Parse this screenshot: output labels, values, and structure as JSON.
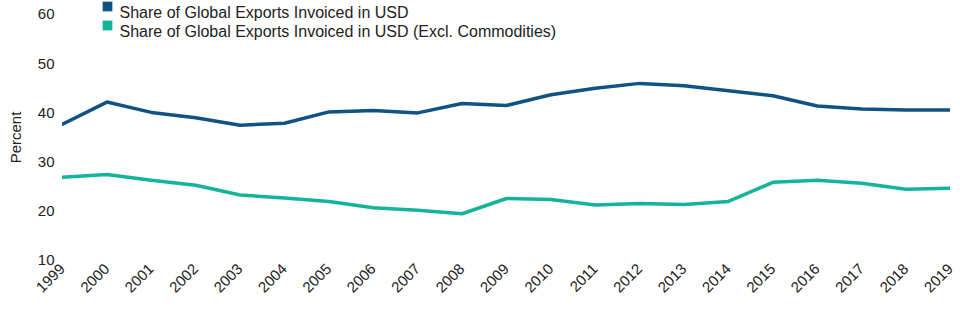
{
  "chart_data": {
    "type": "line",
    "y_label": "Percent",
    "x": [
      1999,
      2000,
      2001,
      2002,
      2003,
      2004,
      2005,
      2006,
      2007,
      2008,
      2009,
      2010,
      2011,
      2012,
      2013,
      2014,
      2015,
      2016,
      2017,
      2018,
      2019
    ],
    "series": [
      {
        "name": "Share of Global Exports Invoiced in USD",
        "color": "#0f5283",
        "values": [
          37.7,
          42.2,
          40.1,
          39.0,
          37.5,
          37.9,
          40.2,
          40.5,
          40.0,
          41.9,
          41.5,
          43.7,
          45.0,
          46.0,
          45.5,
          44.5,
          43.5,
          41.4,
          40.8,
          40.6,
          40.6
        ]
      },
      {
        "name": "Share of Global Exports Invoiced in USD (Excl. Commodities)",
        "color": "#14b39c",
        "values": [
          26.9,
          27.5,
          26.3,
          25.3,
          23.3,
          22.7,
          22.0,
          20.7,
          20.2,
          19.5,
          22.6,
          22.4,
          21.3,
          21.6,
          21.4,
          22.0,
          25.9,
          26.3,
          25.7,
          24.5,
          24.7
        ]
      }
    ],
    "xlim": [
      1999,
      2019
    ],
    "xticks": [
      1999,
      2000,
      2001,
      2002,
      2003,
      2004,
      2005,
      2006,
      2007,
      2008,
      2009,
      2010,
      2011,
      2012,
      2013,
      2014,
      2015,
      2016,
      2017,
      2018,
      2019
    ],
    "ylim": [
      10,
      60
    ],
    "yticks": [
      10,
      20,
      30,
      40,
      50,
      60
    ],
    "grid": false,
    "legend": "top-left"
  }
}
